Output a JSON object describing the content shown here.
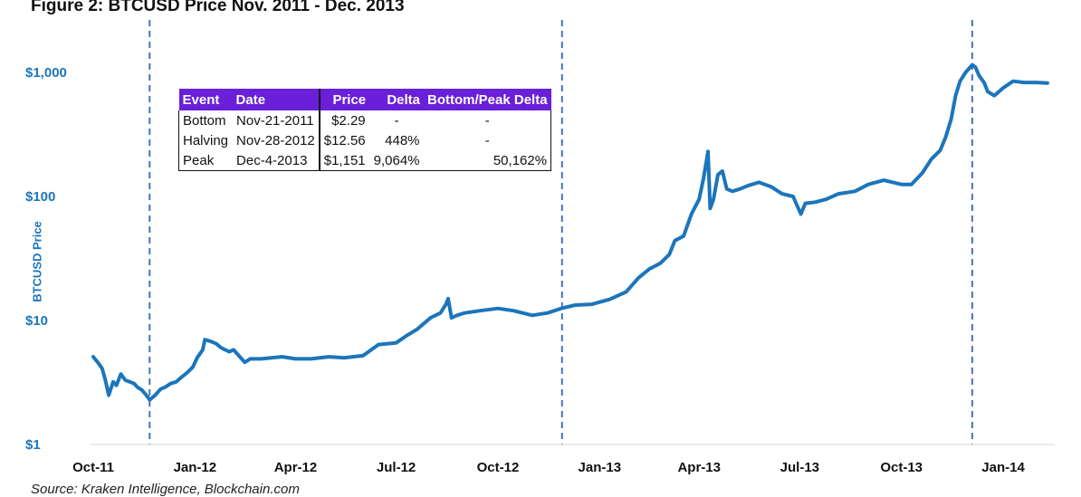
{
  "title": "Figure 2: BTCUSD Price Nov. 2011 - Dec. 2013",
  "source": "Source: Kraken Intelligence, Blockchain.com",
  "colors": {
    "line": "#1b75bc",
    "axis_text": "#1b75bc",
    "vline": "#4472c4",
    "table_header": "#6a1fd8"
  },
  "table": {
    "headers": [
      "Event",
      "Date",
      "Price",
      "Delta",
      "Bottom/Peak Delta"
    ],
    "rows": [
      [
        "Bottom",
        "Nov-21-2011",
        "$2.29",
        "-",
        "-"
      ],
      [
        "Halving",
        "Nov-28-2012",
        "$12.56",
        "448%",
        "-"
      ],
      [
        "Peak",
        "Dec-4-2013",
        "$1,151",
        "9,064%",
        "50,162%"
      ]
    ]
  },
  "chart_data": {
    "type": "line",
    "scale": "log",
    "ylabel": "BTCUSD Price",
    "xlabel": "",
    "y_ticks": [
      1,
      10,
      100,
      1000
    ],
    "y_tick_labels": [
      "$1",
      "$10",
      "$100",
      "$1,000"
    ],
    "ylim": [
      1,
      1000
    ],
    "xlim": [
      "2011-10-01",
      "2014-02-15"
    ],
    "x_tick_labels": [
      "Oct-11",
      "Jan-12",
      "Apr-12",
      "Jul-12",
      "Oct-12",
      "Jan-13",
      "Apr-13",
      "Jul-13",
      "Oct-13",
      "Jan-14"
    ],
    "x_tick_dates": [
      "2011-10-01",
      "2012-01-01",
      "2012-04-01",
      "2012-07-01",
      "2012-10-01",
      "2013-01-01",
      "2013-04-01",
      "2013-07-01",
      "2013-10-01",
      "2014-01-01"
    ],
    "event_lines": [
      "2011-11-21",
      "2012-11-28",
      "2013-12-04"
    ],
    "grid": false,
    "series": [
      {
        "x": [
          "2011-10-01",
          "2011-10-05",
          "2011-10-09",
          "2011-10-12",
          "2011-10-15",
          "2011-10-19",
          "2011-10-22",
          "2011-10-26",
          "2011-10-30",
          "2011-11-03",
          "2011-11-07",
          "2011-11-10",
          "2011-11-14",
          "2011-11-18",
          "2011-11-21",
          "2011-11-26",
          "2011-12-01",
          "2011-12-05",
          "2011-12-10",
          "2011-12-15",
          "2011-12-20",
          "2011-12-25",
          "2011-12-30",
          "2012-01-03",
          "2012-01-08",
          "2012-01-10",
          "2012-01-15",
          "2012-01-20",
          "2012-01-25",
          "2012-02-01",
          "2012-02-05",
          "2012-02-15",
          "2012-02-20",
          "2012-03-01",
          "2012-03-10",
          "2012-03-20",
          "2012-04-01",
          "2012-04-15",
          "2012-05-01",
          "2012-05-15",
          "2012-06-01",
          "2012-06-15",
          "2012-07-01",
          "2012-07-10",
          "2012-07-20",
          "2012-08-01",
          "2012-08-10",
          "2012-08-15",
          "2012-08-17",
          "2012-08-20",
          "2012-08-25",
          "2012-09-01",
          "2012-09-15",
          "2012-10-01",
          "2012-10-15",
          "2012-11-01",
          "2012-11-15",
          "2012-11-28",
          "2012-12-10",
          "2012-12-25",
          "2013-01-10",
          "2013-01-25",
          "2013-02-05",
          "2013-02-15",
          "2013-02-25",
          "2013-03-05",
          "2013-03-10",
          "2013-03-18",
          "2013-03-25",
          "2013-04-01",
          "2013-04-05",
          "2013-04-09",
          "2013-04-11",
          "2013-04-14",
          "2013-04-18",
          "2013-04-22",
          "2013-04-26",
          "2013-05-01",
          "2013-05-08",
          "2013-05-15",
          "2013-05-25",
          "2013-06-05",
          "2013-06-15",
          "2013-06-25",
          "2013-07-02",
          "2013-07-06",
          "2013-07-15",
          "2013-07-25",
          "2013-08-05",
          "2013-08-20",
          "2013-09-01",
          "2013-09-15",
          "2013-10-01",
          "2013-10-10",
          "2013-10-20",
          "2013-10-28",
          "2013-11-05",
          "2013-11-10",
          "2013-11-15",
          "2013-11-19",
          "2013-11-23",
          "2013-11-28",
          "2013-12-04",
          "2013-12-07",
          "2013-12-10",
          "2013-12-15",
          "2013-12-18",
          "2013-12-24",
          "2014-01-01",
          "2014-01-10",
          "2014-01-20",
          "2014-01-31",
          "2014-02-10"
        ],
        "y": [
          5.1,
          4.6,
          4.1,
          3.3,
          2.5,
          3.2,
          3.0,
          3.7,
          3.3,
          3.2,
          3.1,
          2.9,
          2.75,
          2.5,
          2.29,
          2.5,
          2.8,
          2.9,
          3.1,
          3.2,
          3.5,
          3.8,
          4.2,
          5.0,
          5.8,
          7.0,
          6.8,
          6.5,
          6.0,
          5.6,
          5.8,
          4.6,
          4.9,
          4.9,
          5.0,
          5.1,
          4.9,
          4.9,
          5.1,
          5.0,
          5.2,
          6.4,
          6.6,
          7.5,
          8.5,
          10.5,
          11.5,
          13.5,
          15.0,
          10.5,
          11.0,
          11.5,
          12.0,
          12.5,
          12.0,
          11.0,
          11.5,
          12.56,
          13.3,
          13.5,
          14.8,
          17.0,
          22.0,
          26.0,
          29.0,
          34.0,
          44.0,
          48.0,
          72.0,
          95.0,
          140.0,
          230.0,
          80.0,
          95.0,
          150.0,
          160.0,
          115.0,
          110.0,
          115.0,
          122.0,
          130.0,
          120.0,
          105.0,
          100.0,
          72.0,
          88.0,
          90.0,
          95.0,
          105.0,
          110.0,
          125.0,
          135.0,
          125.0,
          125.0,
          155.0,
          200.0,
          235.0,
          300.0,
          420.0,
          650.0,
          850.0,
          1000.0,
          1151.0,
          1100.0,
          950.0,
          820.0,
          700.0,
          650.0,
          750.0,
          850.0,
          830.0,
          830.0,
          820.0
        ]
      }
    ]
  }
}
